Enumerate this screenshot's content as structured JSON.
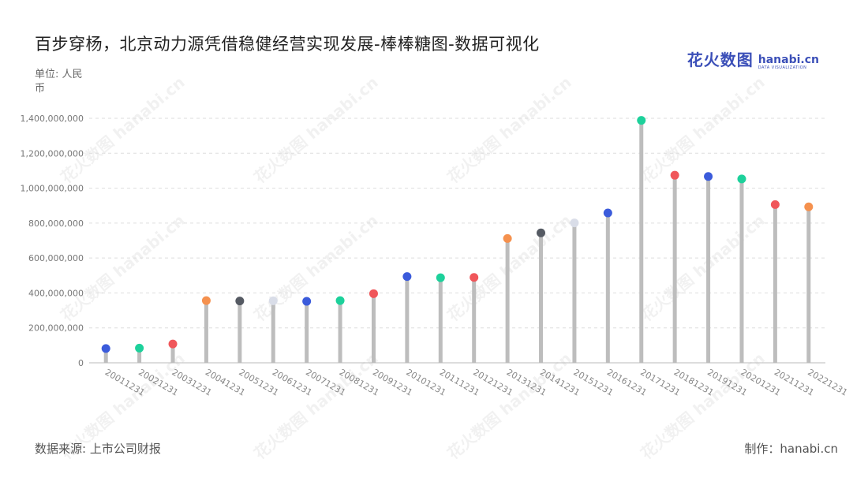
{
  "header": {
    "title": "百步穿杨，北京动力源凭借稳健经营实现发展-棒棒糖图-数据可视化",
    "unit": "单位: 人民币"
  },
  "logo": {
    "cn": "花火数图",
    "en": "hanabi.cn",
    "sub": "DATA VISUALIZATION"
  },
  "footer": {
    "source": "数据来源: 上市公司财报",
    "credit": "制作：hanabi.cn"
  },
  "watermark_text": "花火数图 hanabi.cn",
  "colors": {
    "stick": "#bdbdbd",
    "grid": "#dddddd",
    "palette": [
      "#3b5bdb",
      "#1dd19b",
      "#f0565a",
      "#f5914e",
      "#555a63",
      "#d9dde8"
    ]
  },
  "chart_data": {
    "type": "lollipop",
    "categories": [
      "20011231",
      "20021231",
      "20031231",
      "20041231",
      "20051231",
      "20061231",
      "20071231",
      "20081231",
      "20091231",
      "20101231",
      "20111231",
      "20121231",
      "20131231",
      "20141231",
      "20151231",
      "20161231",
      "20171231",
      "20181231",
      "20191231",
      "20201231",
      "20211231",
      "20221231"
    ],
    "values": [
      82000000,
      84000000,
      108000000,
      356000000,
      354000000,
      355000000,
      352000000,
      356000000,
      396000000,
      494000000,
      487000000,
      489000000,
      712000000,
      744000000,
      801000000,
      858000000,
      1388000000,
      1074000000,
      1067000000,
      1053000000,
      906000000,
      893000000
    ],
    "dot_color_index": [
      0,
      1,
      2,
      3,
      4,
      5,
      0,
      1,
      2,
      0,
      1,
      2,
      3,
      4,
      5,
      0,
      1,
      2,
      0,
      1,
      2,
      3
    ],
    "yticks": [
      "0",
      "200,000,000",
      "400,000,000",
      "600,000,000",
      "800,000,000",
      "1,000,000,000",
      "1,200,000,000",
      "1,400,000,000"
    ],
    "ylim": [
      0,
      1400000000
    ],
    "grid": true,
    "legend": "none"
  }
}
